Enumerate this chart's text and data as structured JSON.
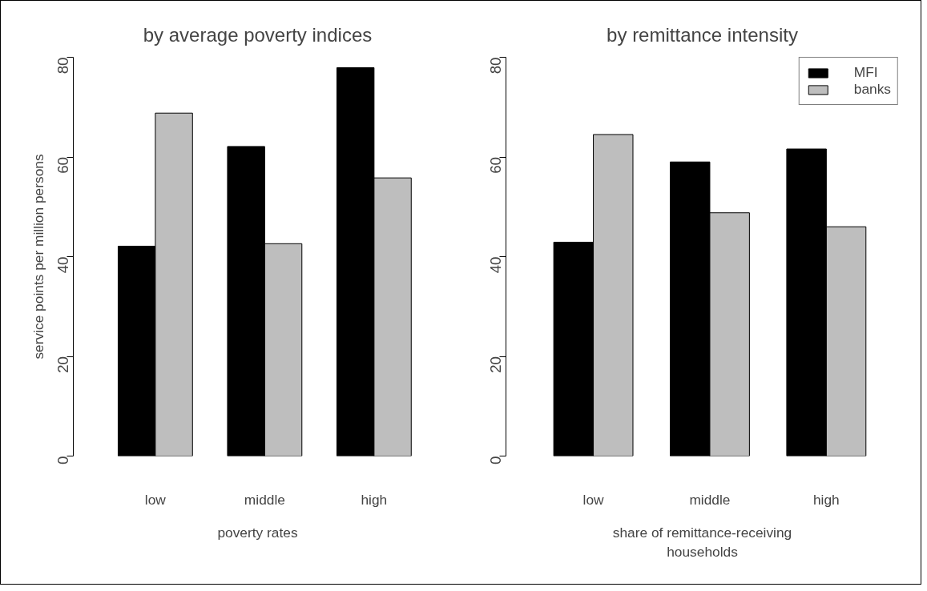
{
  "chart_data": [
    {
      "type": "bar",
      "title": "by average poverty indices",
      "xlabel": "poverty rates",
      "ylabel": "service points per million persons",
      "categories": [
        "low",
        "middle",
        "high"
      ],
      "ylim": [
        0,
        80
      ],
      "yticks": [
        0,
        20,
        40,
        60,
        80
      ],
      "grid": false,
      "legend": false,
      "series": [
        {
          "color": "#000000",
          "values": [
            42.1,
            62.1,
            77.9
          ]
        },
        {
          "color": "#bebebe",
          "values": [
            68.8,
            42.6,
            55.8
          ]
        }
      ]
    },
    {
      "type": "bar",
      "title": "by remittance intensity",
      "xlabel": "share of remittance-receiving\nhouseholds",
      "categories": [
        "low",
        "middle",
        "high"
      ],
      "ylim": [
        0,
        80
      ],
      "yticks": [
        0,
        20,
        40,
        60,
        80
      ],
      "grid": false,
      "legend": "top right",
      "series": [
        {
          "name": "MFI",
          "color": "#000000",
          "values": [
            42.9,
            59.0,
            61.6
          ]
        },
        {
          "name": "banks",
          "color": "#bebebe",
          "values": [
            64.5,
            48.8,
            46.0
          ]
        }
      ]
    }
  ]
}
